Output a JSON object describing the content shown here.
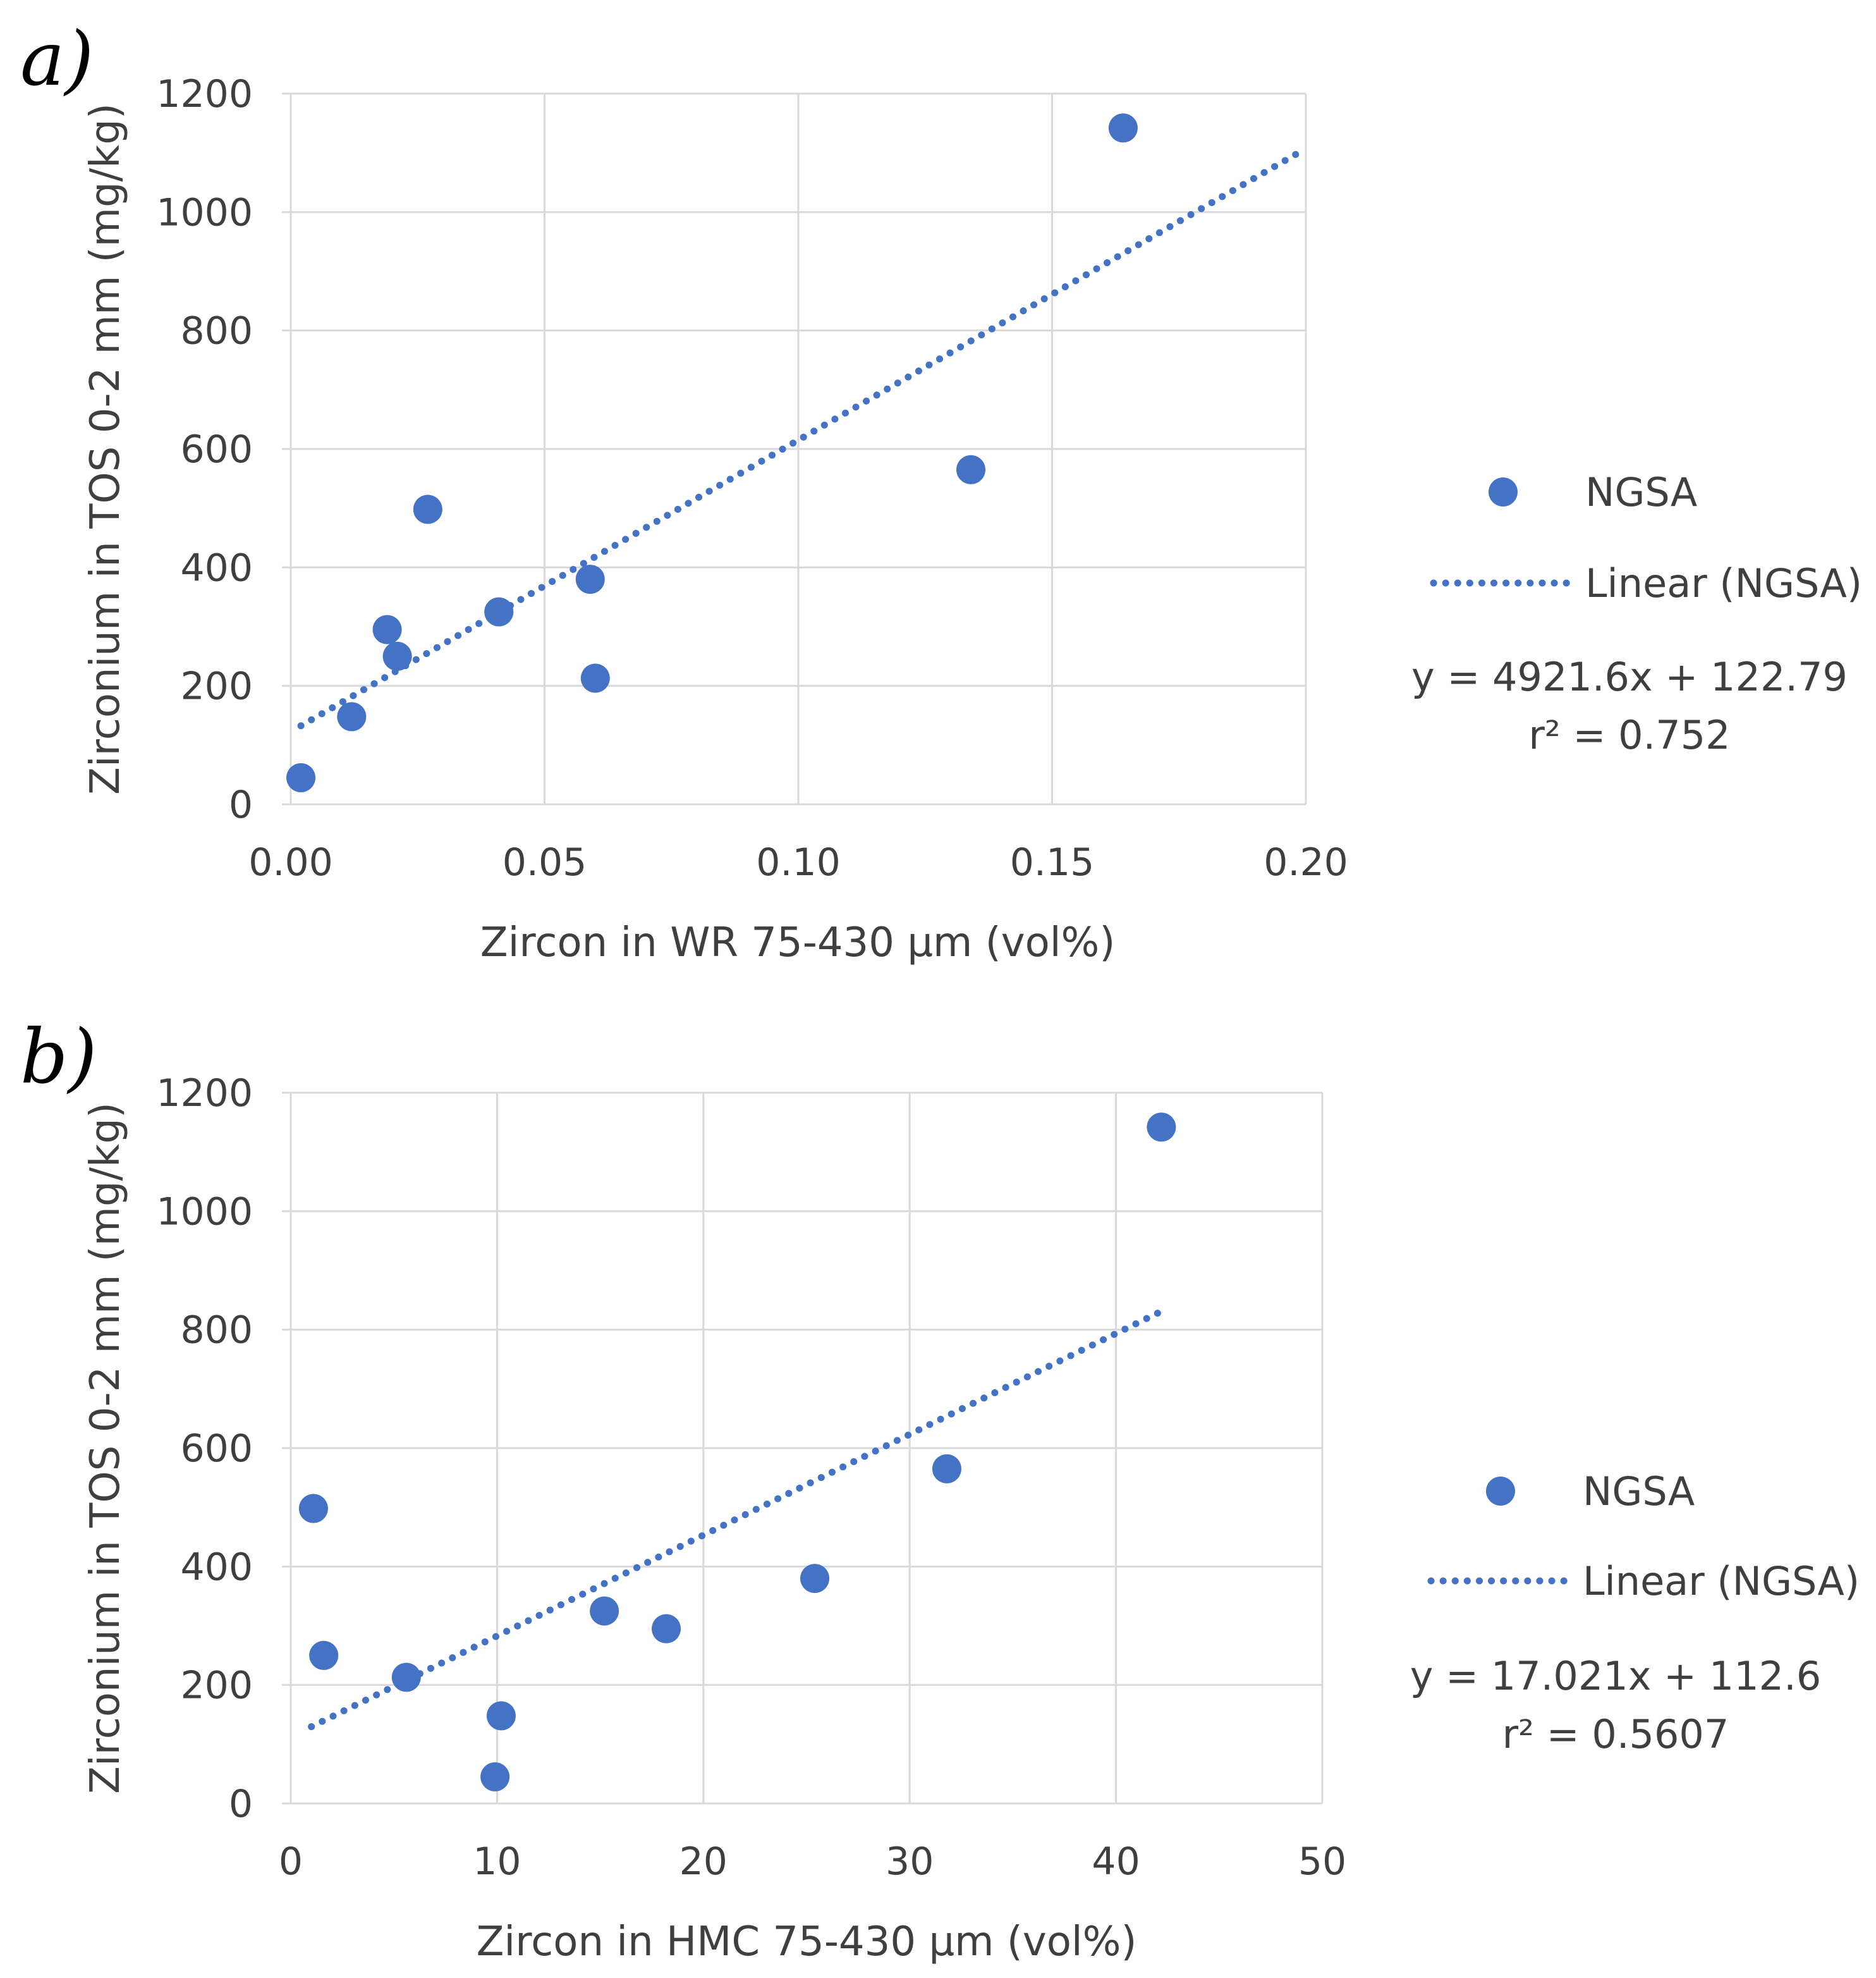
{
  "chart_data": [
    {
      "panel_label": "a)",
      "type": "scatter",
      "xlabel": "Zircon in WR 75-430 µm (vol%)",
      "ylabel": "Zirconium in TOS 0-2 mm (mg/kg)",
      "xlim": [
        0,
        0.2
      ],
      "ylim": [
        0,
        1200
      ],
      "xticks": [
        "0.00",
        "0.05",
        "0.10",
        "0.15",
        "0.20"
      ],
      "yticks": [
        "0",
        "200",
        "400",
        "600",
        "800",
        "1000",
        "1200"
      ],
      "grid": true,
      "legend_position": "right",
      "series": [
        {
          "name": "NGSA",
          "color": "#4472c4",
          "points": [
            {
              "x": 0.002,
              "y": 45
            },
            {
              "x": 0.012,
              "y": 148
            },
            {
              "x": 0.019,
              "y": 295
            },
            {
              "x": 0.021,
              "y": 250
            },
            {
              "x": 0.027,
              "y": 498
            },
            {
              "x": 0.041,
              "y": 325
            },
            {
              "x": 0.059,
              "y": 380
            },
            {
              "x": 0.06,
              "y": 213
            },
            {
              "x": 0.134,
              "y": 565
            },
            {
              "x": 0.164,
              "y": 1142
            }
          ]
        }
      ],
      "trendline": {
        "name": "Linear (NGSA)",
        "slope": 4921.6,
        "intercept": 122.79,
        "x_range": [
          0.002,
          0.2
        ],
        "equation": "y = 4921.6x + 122.79",
        "r2": "r² = 0.752"
      }
    },
    {
      "panel_label": "b)",
      "type": "scatter",
      "xlabel": "Zircon in HMC 75-430 µm (vol%)",
      "ylabel": "Zirconium in TOS 0-2 mm (mg/kg)",
      "xlim": [
        0,
        50
      ],
      "ylim": [
        0,
        1200
      ],
      "xticks": [
        "0",
        "10",
        "20",
        "30",
        "40",
        "50"
      ],
      "yticks": [
        "0",
        "200",
        "400",
        "600",
        "800",
        "1000",
        "1200"
      ],
      "grid": true,
      "legend_position": "right",
      "series": [
        {
          "name": "NGSA",
          "color": "#4472c4",
          "points": [
            {
              "x": 1.1,
              "y": 498
            },
            {
              "x": 1.6,
              "y": 250
            },
            {
              "x": 5.6,
              "y": 213
            },
            {
              "x": 9.9,
              "y": 45
            },
            {
              "x": 10.2,
              "y": 148
            },
            {
              "x": 15.2,
              "y": 325
            },
            {
              "x": 18.2,
              "y": 295
            },
            {
              "x": 25.4,
              "y": 380
            },
            {
              "x": 31.8,
              "y": 565
            },
            {
              "x": 42.2,
              "y": 1142
            }
          ]
        }
      ],
      "trendline": {
        "name": "Linear (NGSA)",
        "slope": 17.021,
        "intercept": 112.6,
        "x_range": [
          1.0,
          42.2
        ],
        "equation": "y = 17.021x + 112.6",
        "r2": "r² = 0.5607"
      }
    }
  ]
}
